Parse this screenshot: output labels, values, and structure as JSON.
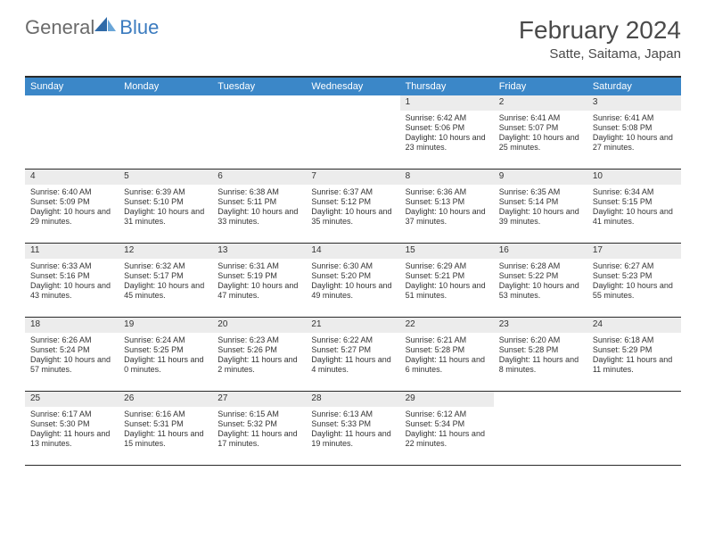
{
  "logo": {
    "general": "General",
    "blue": "Blue"
  },
  "title": "February 2024",
  "location": "Satte, Saitama, Japan",
  "colors": {
    "header_bar": "#3b87c8",
    "daynum_bg": "#ececec",
    "border": "#2a2a2a",
    "logo_gray": "#6b6b6b",
    "logo_blue": "#3b7bbf",
    "text": "#333333",
    "bg": "#ffffff"
  },
  "typography": {
    "title_fontsize": 28,
    "location_fontsize": 15,
    "dow_fontsize": 11,
    "daynum_fontsize": 10,
    "body_fontsize": 9
  },
  "layout": {
    "columns": 7,
    "rows": 5,
    "blank_leading_cells": 4
  },
  "days_of_week": [
    "Sunday",
    "Monday",
    "Tuesday",
    "Wednesday",
    "Thursday",
    "Friday",
    "Saturday"
  ],
  "days": [
    {
      "n": "1",
      "sunrise": "Sunrise: 6:42 AM",
      "sunset": "Sunset: 5:06 PM",
      "daylight": "Daylight: 10 hours and 23 minutes."
    },
    {
      "n": "2",
      "sunrise": "Sunrise: 6:41 AM",
      "sunset": "Sunset: 5:07 PM",
      "daylight": "Daylight: 10 hours and 25 minutes."
    },
    {
      "n": "3",
      "sunrise": "Sunrise: 6:41 AM",
      "sunset": "Sunset: 5:08 PM",
      "daylight": "Daylight: 10 hours and 27 minutes."
    },
    {
      "n": "4",
      "sunrise": "Sunrise: 6:40 AM",
      "sunset": "Sunset: 5:09 PM",
      "daylight": "Daylight: 10 hours and 29 minutes."
    },
    {
      "n": "5",
      "sunrise": "Sunrise: 6:39 AM",
      "sunset": "Sunset: 5:10 PM",
      "daylight": "Daylight: 10 hours and 31 minutes."
    },
    {
      "n": "6",
      "sunrise": "Sunrise: 6:38 AM",
      "sunset": "Sunset: 5:11 PM",
      "daylight": "Daylight: 10 hours and 33 minutes."
    },
    {
      "n": "7",
      "sunrise": "Sunrise: 6:37 AM",
      "sunset": "Sunset: 5:12 PM",
      "daylight": "Daylight: 10 hours and 35 minutes."
    },
    {
      "n": "8",
      "sunrise": "Sunrise: 6:36 AM",
      "sunset": "Sunset: 5:13 PM",
      "daylight": "Daylight: 10 hours and 37 minutes."
    },
    {
      "n": "9",
      "sunrise": "Sunrise: 6:35 AM",
      "sunset": "Sunset: 5:14 PM",
      "daylight": "Daylight: 10 hours and 39 minutes."
    },
    {
      "n": "10",
      "sunrise": "Sunrise: 6:34 AM",
      "sunset": "Sunset: 5:15 PM",
      "daylight": "Daylight: 10 hours and 41 minutes."
    },
    {
      "n": "11",
      "sunrise": "Sunrise: 6:33 AM",
      "sunset": "Sunset: 5:16 PM",
      "daylight": "Daylight: 10 hours and 43 minutes."
    },
    {
      "n": "12",
      "sunrise": "Sunrise: 6:32 AM",
      "sunset": "Sunset: 5:17 PM",
      "daylight": "Daylight: 10 hours and 45 minutes."
    },
    {
      "n": "13",
      "sunrise": "Sunrise: 6:31 AM",
      "sunset": "Sunset: 5:19 PM",
      "daylight": "Daylight: 10 hours and 47 minutes."
    },
    {
      "n": "14",
      "sunrise": "Sunrise: 6:30 AM",
      "sunset": "Sunset: 5:20 PM",
      "daylight": "Daylight: 10 hours and 49 minutes."
    },
    {
      "n": "15",
      "sunrise": "Sunrise: 6:29 AM",
      "sunset": "Sunset: 5:21 PM",
      "daylight": "Daylight: 10 hours and 51 minutes."
    },
    {
      "n": "16",
      "sunrise": "Sunrise: 6:28 AM",
      "sunset": "Sunset: 5:22 PM",
      "daylight": "Daylight: 10 hours and 53 minutes."
    },
    {
      "n": "17",
      "sunrise": "Sunrise: 6:27 AM",
      "sunset": "Sunset: 5:23 PM",
      "daylight": "Daylight: 10 hours and 55 minutes."
    },
    {
      "n": "18",
      "sunrise": "Sunrise: 6:26 AM",
      "sunset": "Sunset: 5:24 PM",
      "daylight": "Daylight: 10 hours and 57 minutes."
    },
    {
      "n": "19",
      "sunrise": "Sunrise: 6:24 AM",
      "sunset": "Sunset: 5:25 PM",
      "daylight": "Daylight: 11 hours and 0 minutes."
    },
    {
      "n": "20",
      "sunrise": "Sunrise: 6:23 AM",
      "sunset": "Sunset: 5:26 PM",
      "daylight": "Daylight: 11 hours and 2 minutes."
    },
    {
      "n": "21",
      "sunrise": "Sunrise: 6:22 AM",
      "sunset": "Sunset: 5:27 PM",
      "daylight": "Daylight: 11 hours and 4 minutes."
    },
    {
      "n": "22",
      "sunrise": "Sunrise: 6:21 AM",
      "sunset": "Sunset: 5:28 PM",
      "daylight": "Daylight: 11 hours and 6 minutes."
    },
    {
      "n": "23",
      "sunrise": "Sunrise: 6:20 AM",
      "sunset": "Sunset: 5:28 PM",
      "daylight": "Daylight: 11 hours and 8 minutes."
    },
    {
      "n": "24",
      "sunrise": "Sunrise: 6:18 AM",
      "sunset": "Sunset: 5:29 PM",
      "daylight": "Daylight: 11 hours and 11 minutes."
    },
    {
      "n": "25",
      "sunrise": "Sunrise: 6:17 AM",
      "sunset": "Sunset: 5:30 PM",
      "daylight": "Daylight: 11 hours and 13 minutes."
    },
    {
      "n": "26",
      "sunrise": "Sunrise: 6:16 AM",
      "sunset": "Sunset: 5:31 PM",
      "daylight": "Daylight: 11 hours and 15 minutes."
    },
    {
      "n": "27",
      "sunrise": "Sunrise: 6:15 AM",
      "sunset": "Sunset: 5:32 PM",
      "daylight": "Daylight: 11 hours and 17 minutes."
    },
    {
      "n": "28",
      "sunrise": "Sunrise: 6:13 AM",
      "sunset": "Sunset: 5:33 PM",
      "daylight": "Daylight: 11 hours and 19 minutes."
    },
    {
      "n": "29",
      "sunrise": "Sunrise: 6:12 AM",
      "sunset": "Sunset: 5:34 PM",
      "daylight": "Daylight: 11 hours and 22 minutes."
    }
  ]
}
